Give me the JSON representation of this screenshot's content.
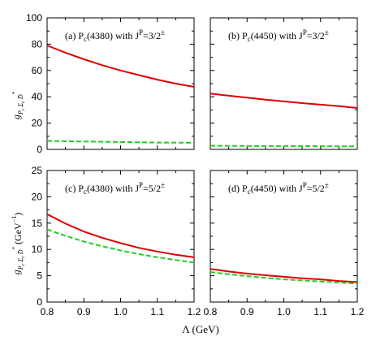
{
  "xlabel": "Λ (GeV)",
  "chart_data": [
    {
      "type": "line",
      "panel": "a",
      "title": "(a)    P_c(4380) with J^P=3/2^±",
      "label": "(a)",
      "state": "P",
      "state_sub": "c",
      "state_rest": "(4380) with J",
      "jp_sup": "P",
      "jp_eq": "=3/2",
      "jp_pm": "±",
      "ylabel": "g_{P_c Σ_c D̄*}",
      "xlim": [
        0.8,
        1.2
      ],
      "ylim": [
        0,
        100
      ],
      "yticks": [
        "0",
        "20",
        "40",
        "60",
        "80",
        "100"
      ],
      "xticks": [],
      "x": [
        0.8,
        0.85,
        0.9,
        0.95,
        1.0,
        1.05,
        1.1,
        1.15,
        1.2
      ],
      "series": [
        {
          "style": "solid",
          "color": "#e00000",
          "values": [
            79,
            73.5,
            68.5,
            64,
            60,
            56.5,
            53,
            50,
            47.5
          ]
        },
        {
          "style": "dashed",
          "color": "#22cc22",
          "values": [
            6.5,
            6.2,
            6.0,
            5.8,
            5.6,
            5.4,
            5.2,
            5.1,
            5.0
          ]
        }
      ]
    },
    {
      "type": "line",
      "panel": "b",
      "title": "(b)    P_c(4450) with J^P=3/2^±",
      "label": "(b)",
      "state": "P",
      "state_sub": "c",
      "state_rest": "(4450) with J",
      "jp_sup": "P",
      "jp_eq": "=3/2",
      "jp_pm": "±",
      "xlim": [
        0.8,
        1.2
      ],
      "ylim": [
        0,
        100
      ],
      "yticks": [],
      "xticks": [],
      "x": [
        0.8,
        0.85,
        0.9,
        0.95,
        1.0,
        1.05,
        1.1,
        1.15,
        1.2
      ],
      "series": [
        {
          "style": "solid",
          "color": "#e00000",
          "values": [
            42.5,
            40.8,
            39.3,
            37.8,
            36.5,
            35.2,
            34.0,
            32.9,
            31.5
          ]
        },
        {
          "style": "dashed",
          "color": "#22cc22",
          "values": [
            2.8,
            2.7,
            2.6,
            2.55,
            2.5,
            2.45,
            2.4,
            2.35,
            2.3
          ]
        }
      ]
    },
    {
      "type": "line",
      "panel": "c",
      "title": "(c)    P_c(4380) with J^P=5/2^±",
      "label": "(c)",
      "state": "P",
      "state_sub": "c",
      "state_rest": "(4380) with J",
      "jp_sup": "P",
      "jp_eq": "=5/2",
      "jp_pm": "±",
      "ylabel": "g_{P_c Σ_c D̄*} (GeV^{-1})",
      "xlim": [
        0.8,
        1.2
      ],
      "ylim": [
        0,
        25
      ],
      "yticks": [
        "0",
        "5",
        "10",
        "15",
        "20",
        "25"
      ],
      "xticks": [
        "0.8",
        "0.9",
        "1.0",
        "1.1",
        "1.2"
      ],
      "x": [
        0.8,
        0.85,
        0.9,
        0.95,
        1.0,
        1.05,
        1.1,
        1.15,
        1.2
      ],
      "series": [
        {
          "style": "solid",
          "color": "#e00000",
          "values": [
            16.7,
            14.9,
            13.4,
            12.2,
            11.2,
            10.3,
            9.6,
            9.0,
            8.5
          ]
        },
        {
          "style": "dashed",
          "color": "#22cc22",
          "values": [
            13.8,
            12.6,
            11.5,
            10.6,
            9.8,
            9.1,
            8.5,
            8.0,
            7.5
          ]
        }
      ]
    },
    {
      "type": "line",
      "panel": "d",
      "title": "(d)    P_c(4450) with J^P=5/2^±",
      "label": "(d)",
      "state": "P",
      "state_sub": "c",
      "state_rest": "(4450) with J",
      "jp_sup": "P",
      "jp_eq": "=5/2",
      "jp_pm": "±",
      "xlim": [
        0.8,
        1.2
      ],
      "ylim": [
        0,
        25
      ],
      "yticks": [],
      "xticks": [
        "0.8",
        "0.9",
        "1.0",
        "1.1",
        "1.2"
      ],
      "x": [
        0.8,
        0.85,
        0.9,
        0.95,
        1.0,
        1.05,
        1.1,
        1.15,
        1.2
      ],
      "series": [
        {
          "style": "solid",
          "color": "#e00000",
          "values": [
            6.3,
            5.8,
            5.4,
            5.1,
            4.8,
            4.5,
            4.3,
            4.0,
            3.8
          ]
        },
        {
          "style": "dashed",
          "color": "#22cc22",
          "values": [
            5.7,
            5.3,
            4.9,
            4.6,
            4.3,
            4.1,
            3.9,
            3.7,
            3.5
          ]
        }
      ]
    }
  ]
}
